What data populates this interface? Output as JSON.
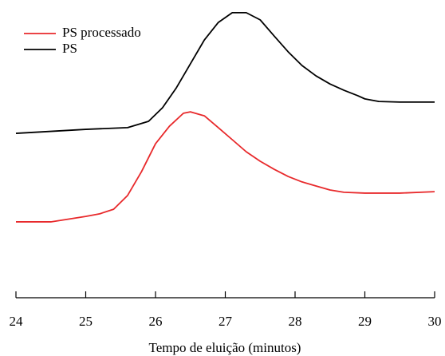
{
  "chart_data": {
    "type": "line",
    "xlabel": "Tempo de eluição (minutos)",
    "xlim": [
      24,
      30
    ],
    "xticks": [
      24,
      25,
      26,
      27,
      28,
      29,
      30
    ],
    "ylim": [
      0,
      100
    ],
    "legend": "upper-left",
    "series": [
      {
        "name": "PS processado",
        "color": "#e8292b",
        "x": [
          24,
          24.5,
          25,
          25.2,
          25.4,
          25.6,
          25.8,
          26.0,
          26.2,
          26.4,
          26.5,
          26.7,
          26.9,
          27.1,
          27.3,
          27.5,
          27.7,
          27.9,
          28.1,
          28.3,
          28.5,
          28.7,
          29,
          29.5,
          30
        ],
        "values": [
          26.4,
          26.4,
          28.3,
          29.2,
          30.8,
          35.6,
          43.9,
          53.6,
          59.7,
          64.2,
          64.7,
          63.3,
          59.2,
          55,
          50.8,
          47.5,
          44.7,
          42.2,
          40.3,
          38.9,
          37.5,
          36.7,
          36.4,
          36.4,
          36.9
        ]
      },
      {
        "name": "PS",
        "color": "#000000",
        "x": [
          24,
          25,
          25.6,
          25.9,
          26.1,
          26.3,
          26.5,
          26.7,
          26.9,
          27.1,
          27.3,
          27.5,
          27.7,
          27.9,
          28.1,
          28.3,
          28.5,
          28.7,
          28.9,
          29.0,
          29.2,
          29.5,
          30
        ],
        "values": [
          57.2,
          58.6,
          59.2,
          61.4,
          66.1,
          73.1,
          81.4,
          89.7,
          95.8,
          99.2,
          99.2,
          96.7,
          91.1,
          85.6,
          80.8,
          77.2,
          74.4,
          72.2,
          70.3,
          69.2,
          68.3,
          68.1,
          68.1
        ]
      }
    ]
  }
}
